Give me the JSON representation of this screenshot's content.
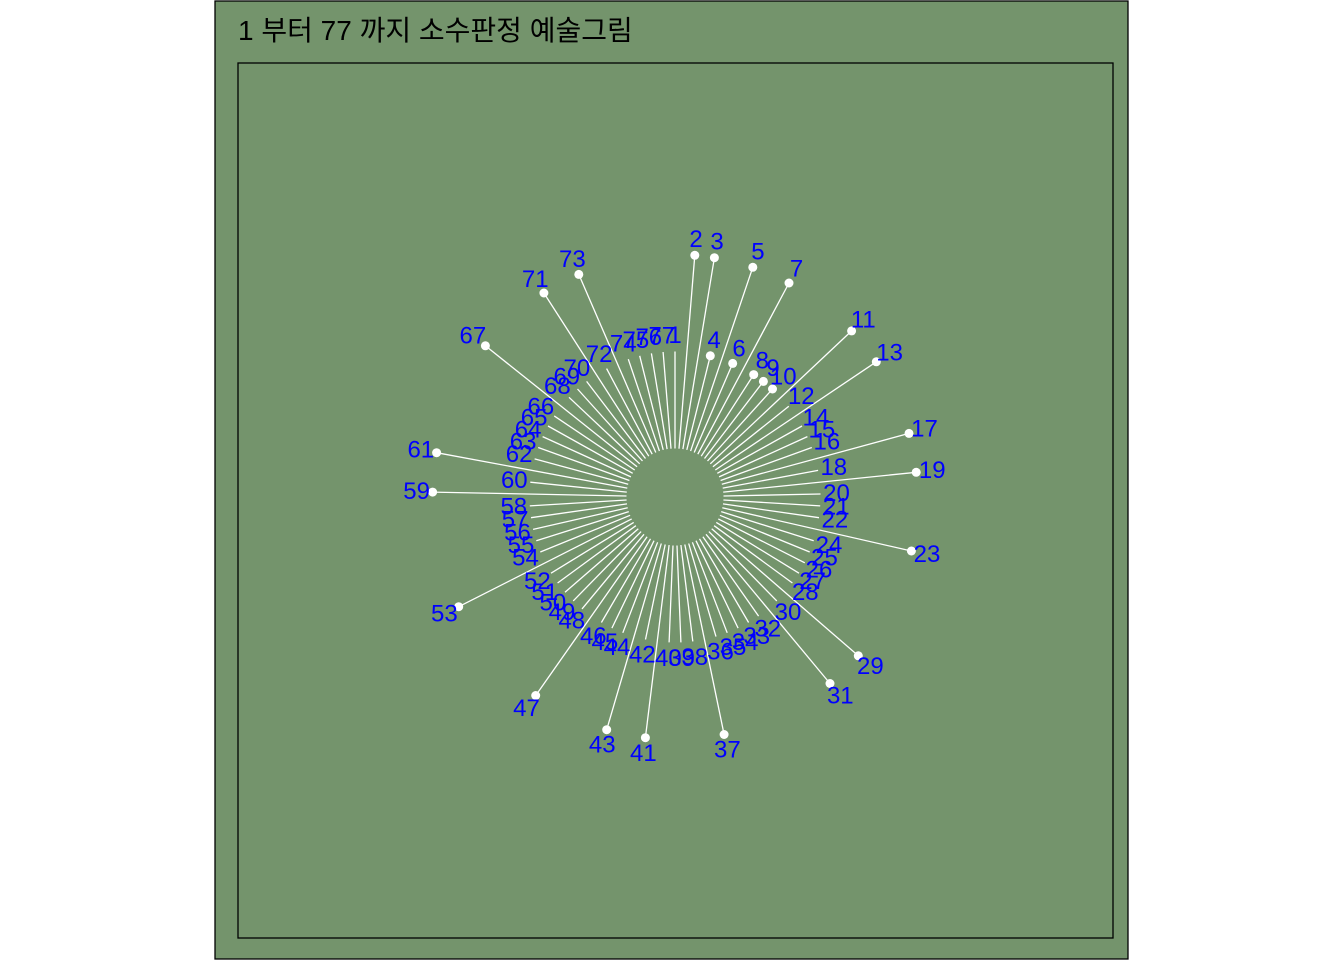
{
  "title": "1 부터 77 까지 소수판정 예술그림",
  "colors": {
    "background": "#74946c",
    "frame": "#000000",
    "line": "#ffffff",
    "label": "#0000ff",
    "title": "#000000"
  },
  "chart_data": {
    "type": "radial-lines",
    "n_from": 1,
    "n_to": 77,
    "start_position": "top",
    "direction": "clockwise",
    "inner_radius": 1.0,
    "prime_radius": 5.0,
    "nonprime_radius": 3.0,
    "primes": [
      2,
      3,
      5,
      7,
      11,
      13,
      17,
      19,
      23,
      29,
      31,
      37,
      41,
      43,
      47,
      53,
      59,
      61,
      67,
      71,
      73
    ],
    "nonprime_marked": [
      4,
      6,
      8,
      9,
      10
    ],
    "show_points": true,
    "show_labels": true,
    "grid": false,
    "legend": "none"
  }
}
